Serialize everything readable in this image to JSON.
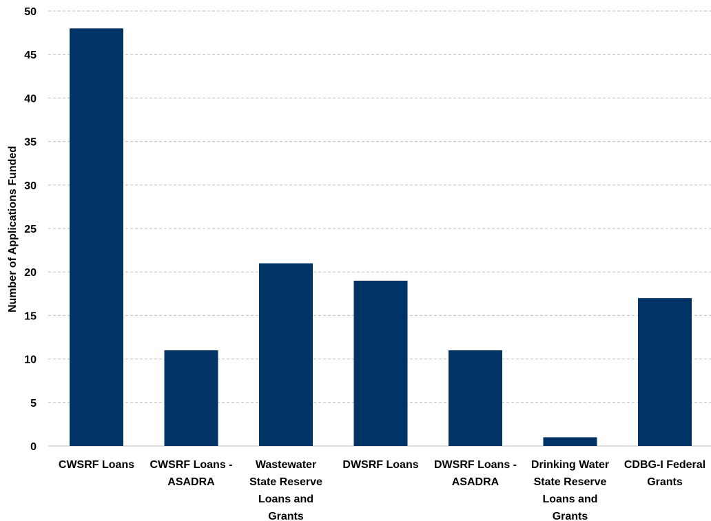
{
  "chart_data": {
    "type": "bar",
    "categories": [
      "CWSRF Loans",
      "CWSRF Loans - ASADRA",
      "Wastewater State Reserve Loans and Grants",
      "DWSRF Loans",
      "DWSRF Loans - ASADRA",
      "Drinking Water State Reserve Loans and Grants",
      "CDBG-I Federal Grants"
    ],
    "category_lines": [
      [
        "CWSRF Loans"
      ],
      [
        "CWSRF Loans -",
        "ASADRA"
      ],
      [
        "Wastewater",
        "State Reserve",
        "Loans and",
        "Grants"
      ],
      [
        "DWSRF Loans"
      ],
      [
        "DWSRF Loans -",
        "ASADRA"
      ],
      [
        "Drinking Water",
        "State Reserve",
        "Loans and",
        "Grants"
      ],
      [
        "CDBG-I Federal",
        "Grants"
      ]
    ],
    "values": [
      48,
      11,
      21,
      19,
      11,
      1,
      17
    ],
    "title": "",
    "xlabel": "",
    "ylabel": "Number of Applications Funded",
    "ylim": [
      0,
      50
    ],
    "yticks": [
      "0",
      "5",
      "10",
      "15",
      "20",
      "25",
      "30",
      "35",
      "40",
      "45",
      "50"
    ],
    "grid": true,
    "bar_color": "#003366",
    "grid_color": "#bfbfbf"
  }
}
